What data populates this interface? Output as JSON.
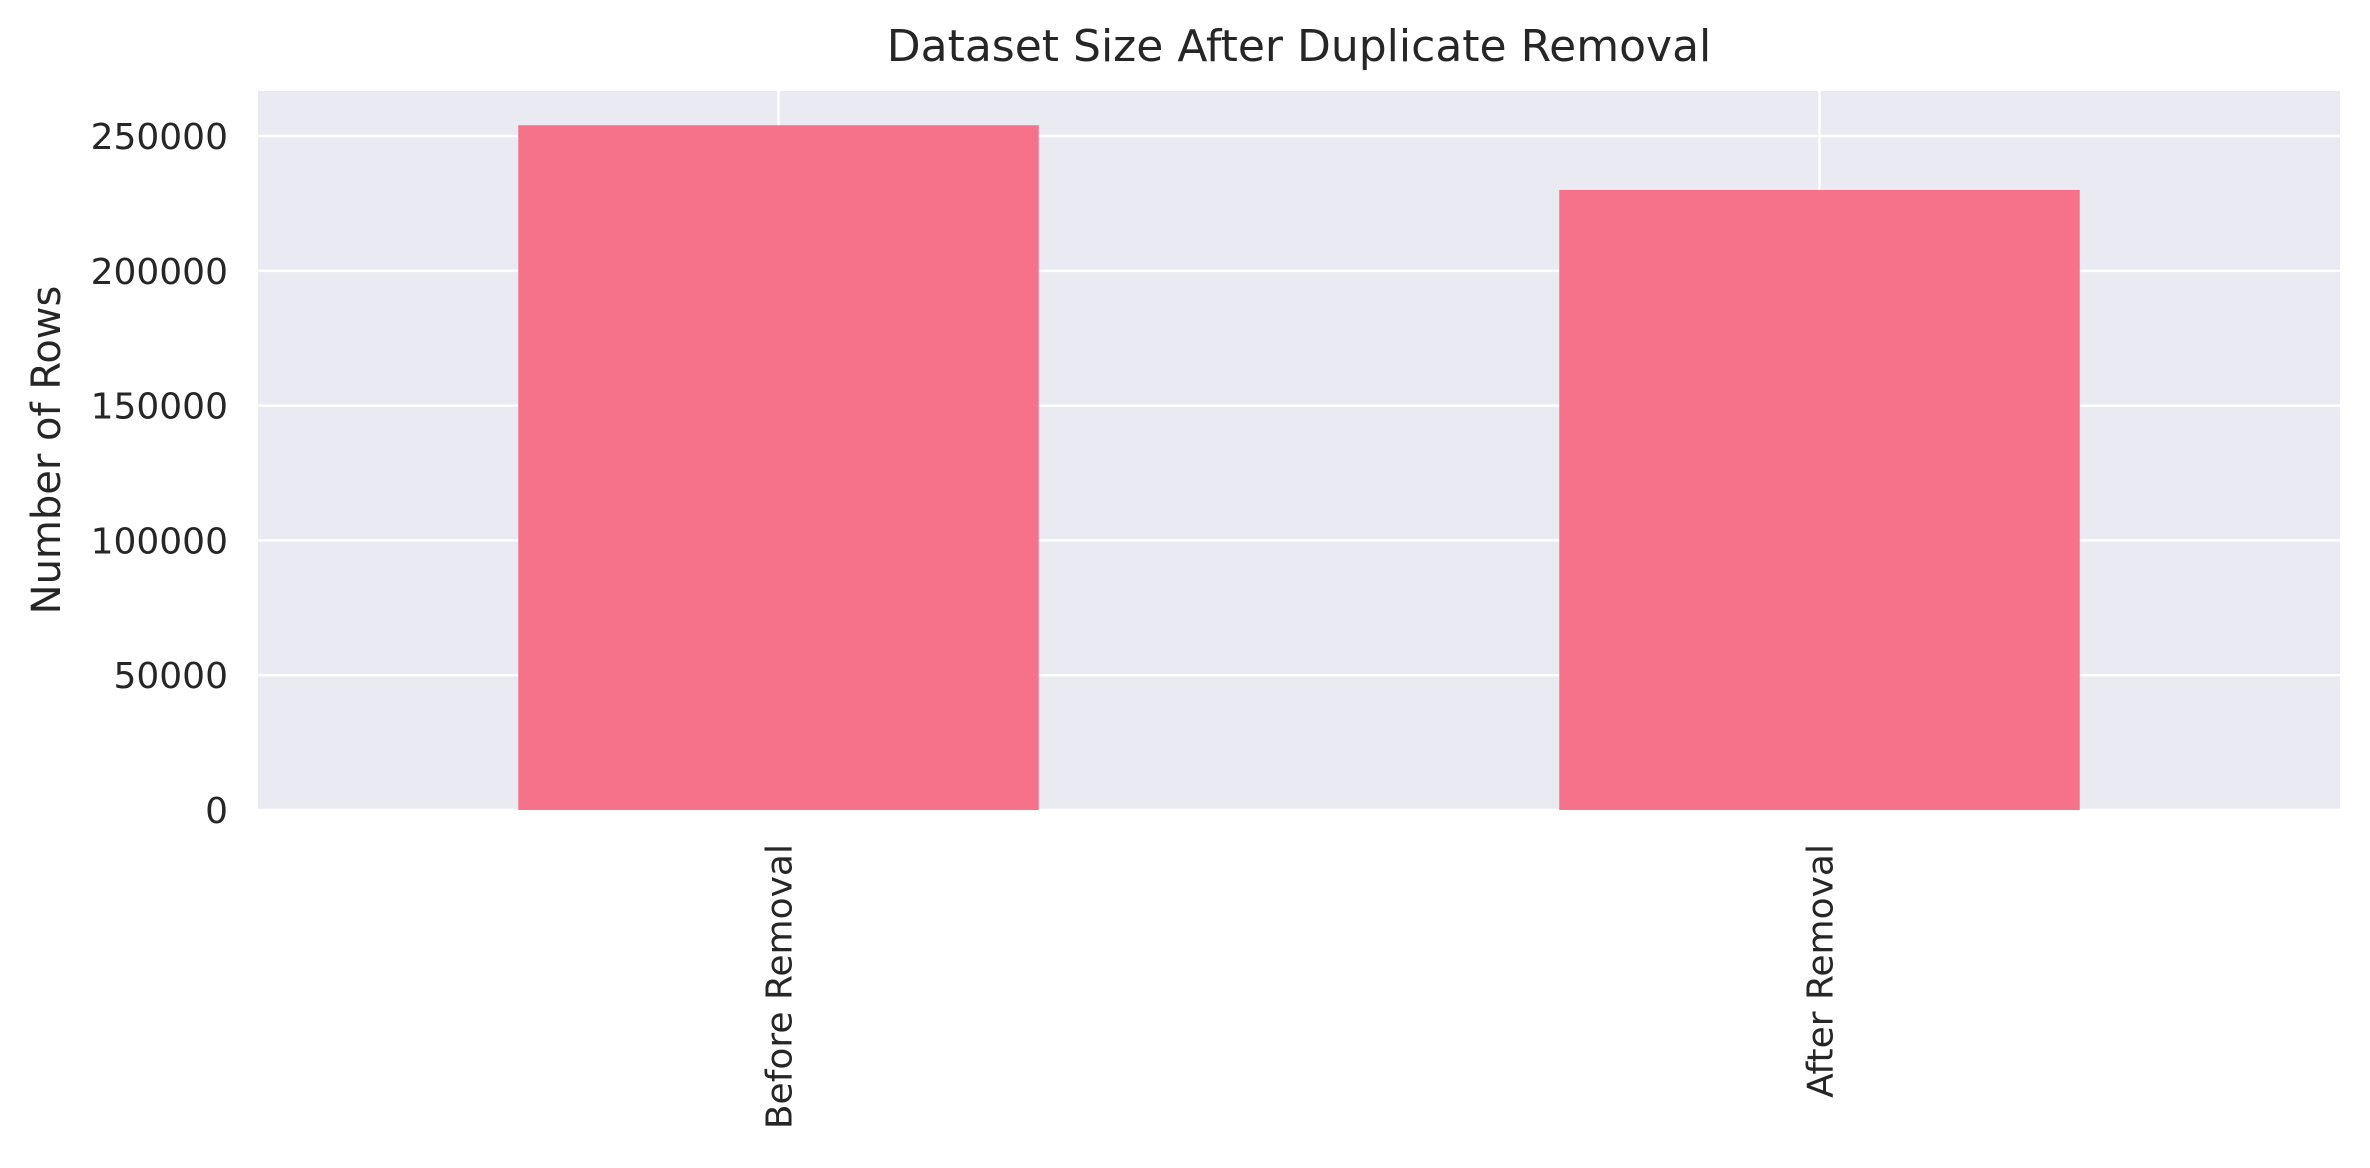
{
  "chart_data": {
    "type": "bar",
    "title": "Dataset Size After Duplicate Removal",
    "xlabel": "",
    "ylabel": "Number of Rows",
    "categories": [
      "Before Removal",
      "After Removal"
    ],
    "values": [
      254000,
      230000
    ],
    "ylim": [
      0,
      266700
    ],
    "yticks": [
      0,
      50000,
      100000,
      150000,
      200000,
      250000
    ],
    "ytick_labels": [
      "0",
      "50000",
      "100000",
      "150000",
      "200000",
      "250000"
    ],
    "grid": true,
    "legend": "none",
    "colors": {
      "bar": "#f5728a",
      "plot_background": "#eaeaf2",
      "grid": "#ffffff",
      "text": "#262626"
    }
  }
}
